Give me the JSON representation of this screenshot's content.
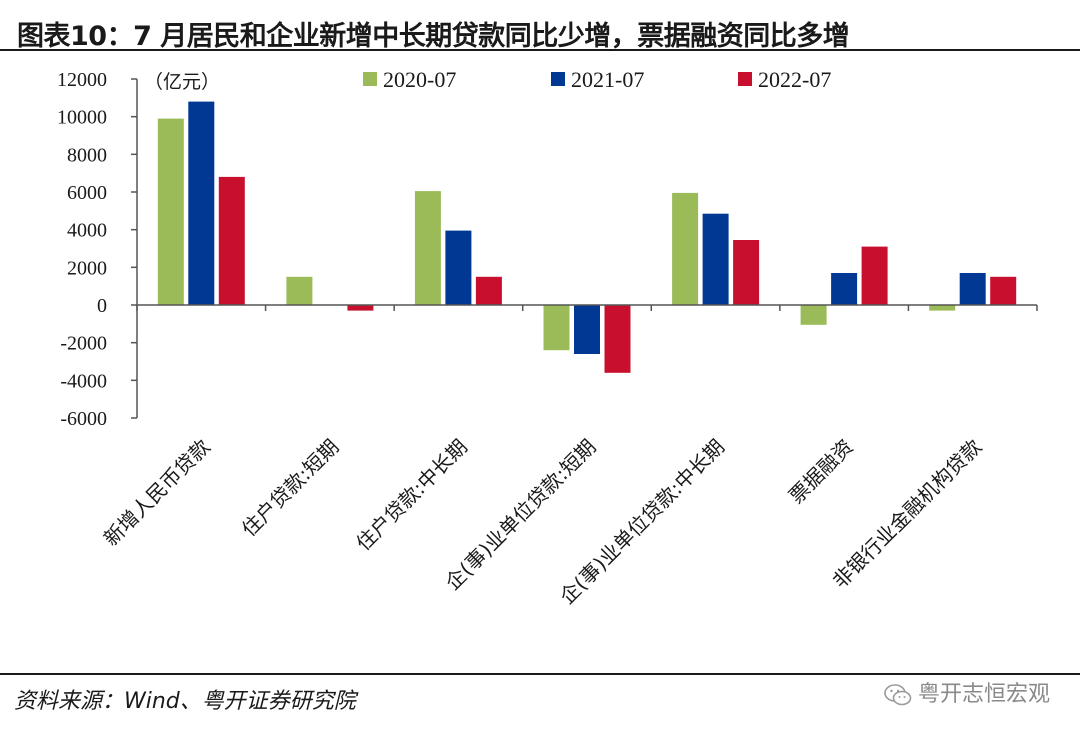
{
  "header": {
    "title": "图表10：7 月居民和企业新增中长期贷款同比少增，票据融资同比多增"
  },
  "footer": {
    "source": "资料来源：Wind、粤开证券研究院",
    "watermark": "粤开志恒宏观"
  },
  "chart_data": {
    "type": "bar",
    "title": "图表10：7 月居民和企业新增中长期贷款同比少增，票据融资同比多增",
    "unit_label": "（亿元）",
    "ylim": [
      -6000,
      12000
    ],
    "yticks": [
      -6000,
      -4000,
      -2000,
      0,
      2000,
      4000,
      6000,
      8000,
      10000,
      12000
    ],
    "categories": [
      "新增人民币贷款",
      "住户贷款:短期",
      "住户贷款:中长期",
      "企(事)业单位贷款:短期",
      "企(事)业单位贷款:中长期",
      "票据融资",
      "非银行业金融机构贷款"
    ],
    "series": [
      {
        "name": "2020-07",
        "color": "#9bbb59",
        "values": [
          9900,
          1500,
          6050,
          -2400,
          5950,
          -1050,
          -300
        ]
      },
      {
        "name": "2021-07",
        "color": "#003893",
        "values": [
          10800,
          0,
          3950,
          -2600,
          4850,
          1700,
          1700
        ]
      },
      {
        "name": "2022-07",
        "color": "#c8102e",
        "values": [
          6800,
          -300,
          1500,
          -3600,
          3450,
          3100,
          1500
        ]
      }
    ],
    "legend_position": "top"
  }
}
